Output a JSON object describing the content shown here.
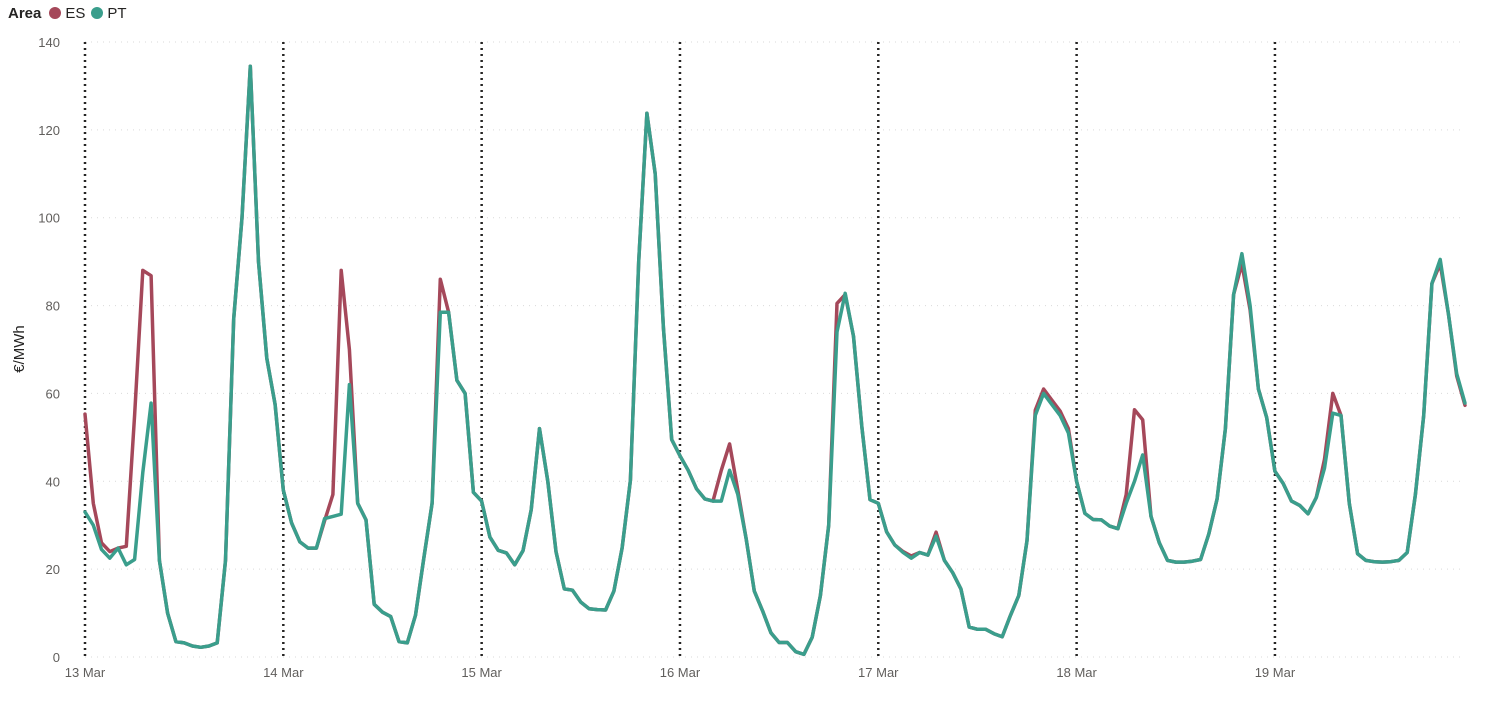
{
  "legend": {
    "title": "Area"
  },
  "chart_data": {
    "type": "line",
    "title": "",
    "xlabel": "",
    "ylabel": "€/MWh",
    "ylim": [
      0,
      140
    ],
    "yticks": [
      0,
      20,
      40,
      60,
      80,
      100,
      120,
      140
    ],
    "xlim": [
      0,
      167
    ],
    "x_ticks": [
      {
        "hour": 0,
        "label": "13 Mar"
      },
      {
        "hour": 24,
        "label": "14 Mar"
      },
      {
        "hour": 48,
        "label": "15 Mar"
      },
      {
        "hour": 72,
        "label": "16 Mar"
      },
      {
        "hour": 96,
        "label": "17 Mar"
      },
      {
        "hour": 120,
        "label": "18 Mar"
      },
      {
        "hour": 144,
        "label": "19 Mar"
      }
    ],
    "grid": true,
    "legend_position": "top-left",
    "series": [
      {
        "name": "ES",
        "color": "#a5485a",
        "values": [
          55.3,
          35,
          26,
          24,
          24.8,
          25.2,
          55,
          88,
          86.8,
          22,
          10,
          3.5,
          3.2,
          2.5,
          2.2,
          2.5,
          3.2,
          22,
          77,
          100,
          134.5,
          90,
          68,
          57.5,
          38,
          30.5,
          26.2,
          24.8,
          24.8,
          31,
          37,
          88,
          70,
          35,
          31.2,
          12,
          10.2,
          9.2,
          3.5,
          3.2,
          9.5,
          22.5,
          35,
          86,
          78.5,
          63,
          60,
          37.5,
          35.5,
          27.3,
          24.3,
          23.7,
          21,
          24.2,
          33.5,
          52,
          40,
          24,
          15.5,
          15.2,
          12.5,
          11,
          10.8,
          10.7,
          15,
          24.8,
          40.2,
          90,
          123.8,
          110,
          75,
          49.5,
          45.8,
          42.5,
          38.3,
          36,
          35.5,
          42.5,
          48.5,
          38,
          27,
          15,
          10.5,
          5.5,
          3.3,
          3.3,
          1.2,
          0.6,
          4.5,
          14,
          30,
          80.5,
          82.5,
          73,
          52.5,
          35.8,
          35,
          28.5,
          25.5,
          24,
          23,
          23.8,
          23.2,
          28.4,
          22,
          19.2,
          15.5,
          6.8,
          6.3,
          6.3,
          5.3,
          4.6,
          9.5,
          14,
          26.5,
          56.2,
          61,
          58.5,
          56,
          52,
          40,
          32.7,
          31.3,
          31.2,
          29.8,
          29.2,
          37,
          56.3,
          54,
          32,
          26,
          22,
          21.6,
          21.6,
          21.8,
          22.2,
          28,
          36,
          52,
          82.5,
          89.5,
          79,
          61,
          54.5,
          42.3,
          39.5,
          35.5,
          34.5,
          32.6,
          36.3,
          45,
          60,
          55,
          35,
          23.5,
          22,
          21.7,
          21.6,
          21.7,
          22,
          23.8,
          37,
          55,
          85,
          89.5,
          78,
          64,
          57.3
        ]
      },
      {
        "name": "PT",
        "color": "#3a9e8c",
        "values": [
          33,
          30,
          24.5,
          22.5,
          24.8,
          21,
          22.2,
          42,
          57.8,
          22,
          10,
          3.5,
          3.2,
          2.5,
          2.2,
          2.5,
          3.2,
          22,
          77,
          100,
          134.5,
          90,
          68,
          57.5,
          38,
          30.5,
          26.2,
          24.8,
          24.8,
          31.5,
          32,
          32.5,
          62,
          35,
          31.2,
          12,
          10.2,
          9.2,
          3.5,
          3.2,
          9.5,
          22.5,
          35,
          78.5,
          78.5,
          63,
          60,
          37.5,
          35.5,
          27.3,
          24.3,
          23.7,
          21,
          24.2,
          33.5,
          52,
          40,
          24,
          15.5,
          15.2,
          12.5,
          11,
          10.8,
          10.7,
          15,
          24.8,
          40.2,
          90,
          123.8,
          110,
          75,
          49.5,
          45.8,
          42.5,
          38.3,
          36,
          35.5,
          35.5,
          42.5,
          37,
          27,
          15,
          10.5,
          5.5,
          3.3,
          3.3,
          1.2,
          0.6,
          4.5,
          14,
          30,
          74,
          82.8,
          73,
          52.5,
          35.8,
          35,
          28.5,
          25.5,
          23.8,
          22.5,
          23.8,
          23.2,
          27.5,
          22,
          19.2,
          15.5,
          6.8,
          6.3,
          6.3,
          5.3,
          4.6,
          9.5,
          14,
          26.5,
          55,
          60,
          57.5,
          55,
          51,
          40,
          32.7,
          31.3,
          31.2,
          29.8,
          29.2,
          35,
          40,
          46,
          32,
          26,
          22,
          21.6,
          21.6,
          21.8,
          22.2,
          28,
          36,
          52,
          82.5,
          91.8,
          80,
          61,
          54.5,
          42.3,
          39.5,
          35.5,
          34.5,
          32.6,
          36.3,
          43,
          55.5,
          55,
          35,
          23.5,
          22,
          21.7,
          21.6,
          21.7,
          22,
          23.8,
          37,
          55,
          85,
          90.5,
          78,
          64.5,
          57.8
        ]
      }
    ]
  }
}
